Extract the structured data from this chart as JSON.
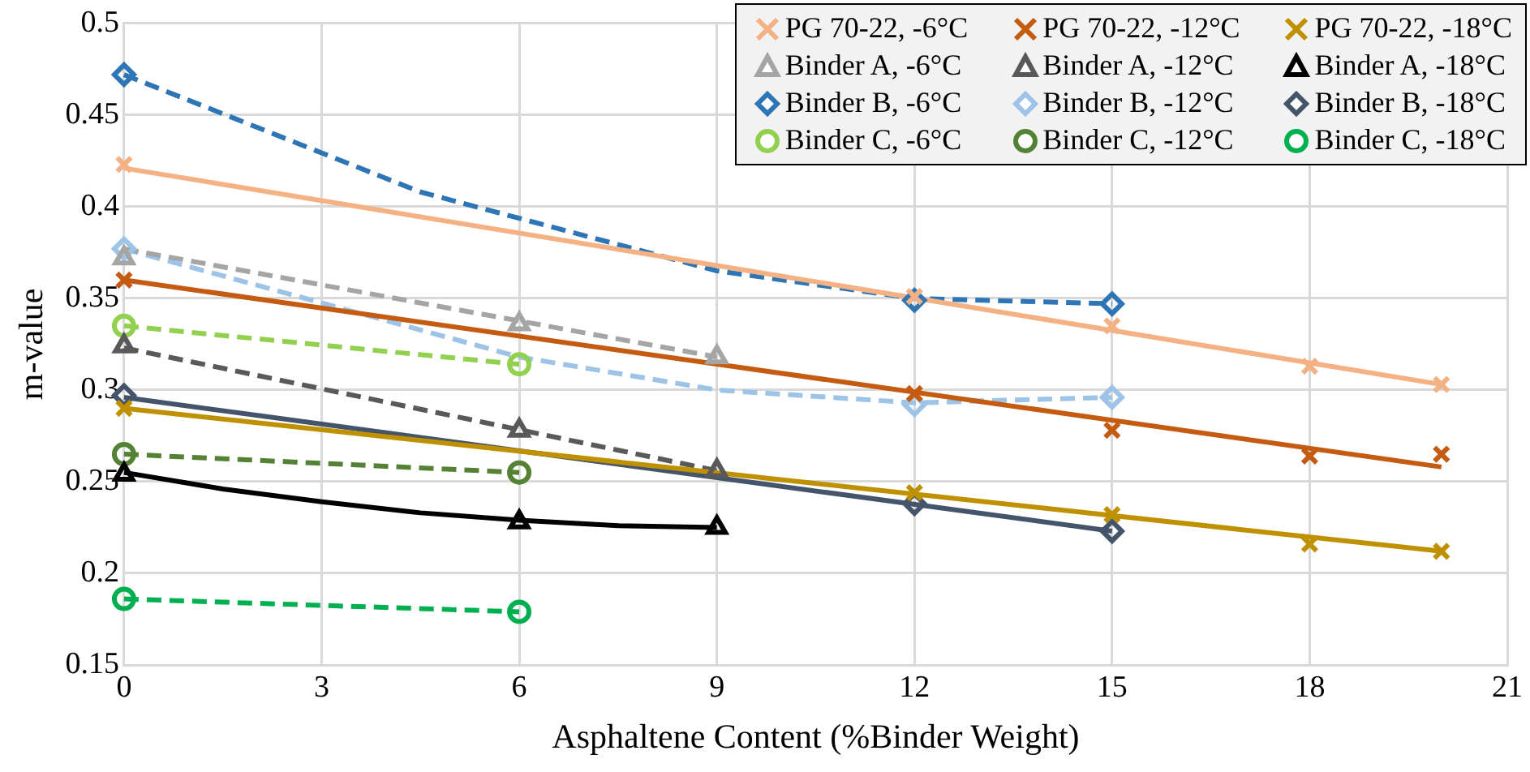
{
  "chart_data": {
    "type": "scatter",
    "xlabel": "Asphaltene Content (%Binder Weight)",
    "ylabel": "m-value",
    "xlim": [
      0,
      21
    ],
    "xticks": [
      0,
      3,
      6,
      9,
      12,
      15,
      18,
      21
    ],
    "ylim": [
      0.15,
      0.5
    ],
    "yticks": [
      0.15,
      0.2,
      0.25,
      0.3,
      0.35,
      0.4,
      0.45,
      0.5
    ],
    "grid": true,
    "legend": "top right",
    "series": [
      {
        "name": "PG 70-22, -6°C",
        "color": "#f4b183",
        "marker": "cross",
        "x": [
          0,
          12,
          15,
          18,
          20
        ],
        "values": [
          0.423,
          0.351,
          0.335,
          0.313,
          0.303
        ]
      },
      {
        "name": "PG 70-22, -12°C",
        "color": "#c55a11",
        "marker": "cross",
        "x": [
          0,
          12,
          15,
          18,
          20
        ],
        "values": [
          0.36,
          0.298,
          0.278,
          0.264,
          0.265
        ]
      },
      {
        "name": "PG 70-22, -18°C",
        "color": "#bf9000",
        "marker": "cross",
        "x": [
          0,
          12,
          15,
          18,
          20
        ],
        "values": [
          0.29,
          0.244,
          0.232,
          0.216,
          0.212
        ]
      },
      {
        "name": "Binder A, -6°C",
        "color": "#a5a5a5",
        "marker": "triangle",
        "x": [
          0,
          6,
          9
        ],
        "values": [
          0.372,
          0.336,
          0.318
        ]
      },
      {
        "name": "Binder A, -12°C",
        "color": "#595959",
        "marker": "triangle",
        "x": [
          0,
          6,
          9
        ],
        "values": [
          0.324,
          0.278,
          0.256
        ]
      },
      {
        "name": "Binder A, -18°C",
        "color": "#000000",
        "marker": "triangle",
        "x": [
          0,
          6,
          9
        ],
        "values": [
          0.254,
          0.228,
          0.225
        ]
      },
      {
        "name": "Binder B, -6°C",
        "color": "#2e75b6",
        "marker": "diamond",
        "x": [
          0,
          12,
          15
        ],
        "values": [
          0.472,
          0.349,
          0.347
        ]
      },
      {
        "name": "Binder B, -12°C",
        "color": "#9dc3e6",
        "marker": "diamond",
        "x": [
          0,
          12,
          15
        ],
        "values": [
          0.377,
          0.292,
          0.296
        ]
      },
      {
        "name": "Binder B, -18°C",
        "color": "#44546a",
        "marker": "diamond",
        "x": [
          0,
          12,
          15
        ],
        "values": [
          0.297,
          0.238,
          0.223
        ]
      },
      {
        "name": "Binder C, -6°C",
        "color": "#92d050",
        "marker": "circle",
        "x": [
          0,
          6
        ],
        "values": [
          0.335,
          0.314
        ]
      },
      {
        "name": "Binder C, -12°C",
        "color": "#548235",
        "marker": "circle",
        "x": [
          0,
          6
        ],
        "values": [
          0.265,
          0.255
        ]
      },
      {
        "name": "Binder C, -18°C",
        "color": "#00b050",
        "marker": "circle",
        "x": [
          0,
          6
        ],
        "values": [
          0.186,
          0.179
        ]
      },
      {
        "type": "line",
        "color": "#f4b183",
        "line_style": "solid",
        "marker": "none",
        "x": [
          0,
          20
        ],
        "values": [
          0.421,
          0.303
        ]
      },
      {
        "type": "line",
        "color": "#c55a11",
        "line_style": "solid",
        "marker": "none",
        "x": [
          0,
          20
        ],
        "values": [
          0.36,
          0.258
        ]
      },
      {
        "type": "line",
        "color": "#bf9000",
        "line_style": "solid",
        "marker": "none",
        "x": [
          0,
          20
        ],
        "values": [
          0.29,
          0.212
        ]
      },
      {
        "type": "line",
        "color": "#a5a5a5",
        "line_style": "dashed",
        "marker": "none",
        "x": [
          0,
          9
        ],
        "values": [
          0.377,
          0.318
        ]
      },
      {
        "type": "line",
        "color": "#595959",
        "line_style": "dashed",
        "marker": "none",
        "x": [
          0,
          9
        ],
        "values": [
          0.323,
          0.256
        ]
      },
      {
        "type": "line",
        "color": "#000000",
        "line_style": "solid",
        "marker": "none",
        "x": [
          0,
          1.5,
          3,
          4.5,
          6,
          7.5,
          9
        ],
        "values": [
          0.255,
          0.246,
          0.239,
          0.233,
          0.229,
          0.226,
          0.225
        ]
      },
      {
        "type": "line",
        "color": "#2e75b6",
        "line_style": "dashed",
        "marker": "none",
        "x": [
          0,
          4.5,
          9,
          12,
          15
        ],
        "values": [
          0.472,
          0.408,
          0.365,
          0.35,
          0.347
        ]
      },
      {
        "type": "line",
        "color": "#9dc3e6",
        "line_style": "dashed",
        "marker": "none",
        "x": [
          0,
          6,
          9,
          12,
          15
        ],
        "values": [
          0.377,
          0.318,
          0.3,
          0.293,
          0.296
        ]
      },
      {
        "type": "line",
        "color": "#44546a",
        "line_style": "solid",
        "marker": "none",
        "x": [
          0,
          15
        ],
        "values": [
          0.296,
          0.223
        ]
      },
      {
        "type": "line",
        "color": "#92d050",
        "line_style": "dashed",
        "marker": "none",
        "x": [
          0,
          6
        ],
        "values": [
          0.335,
          0.314
        ]
      },
      {
        "type": "line",
        "color": "#548235",
        "line_style": "dashed",
        "marker": "none",
        "x": [
          0,
          6
        ],
        "values": [
          0.265,
          0.255
        ]
      },
      {
        "type": "line",
        "color": "#00b050",
        "line_style": "dashed",
        "marker": "none",
        "x": [
          0,
          6
        ],
        "values": [
          0.186,
          0.179
        ]
      }
    ]
  }
}
